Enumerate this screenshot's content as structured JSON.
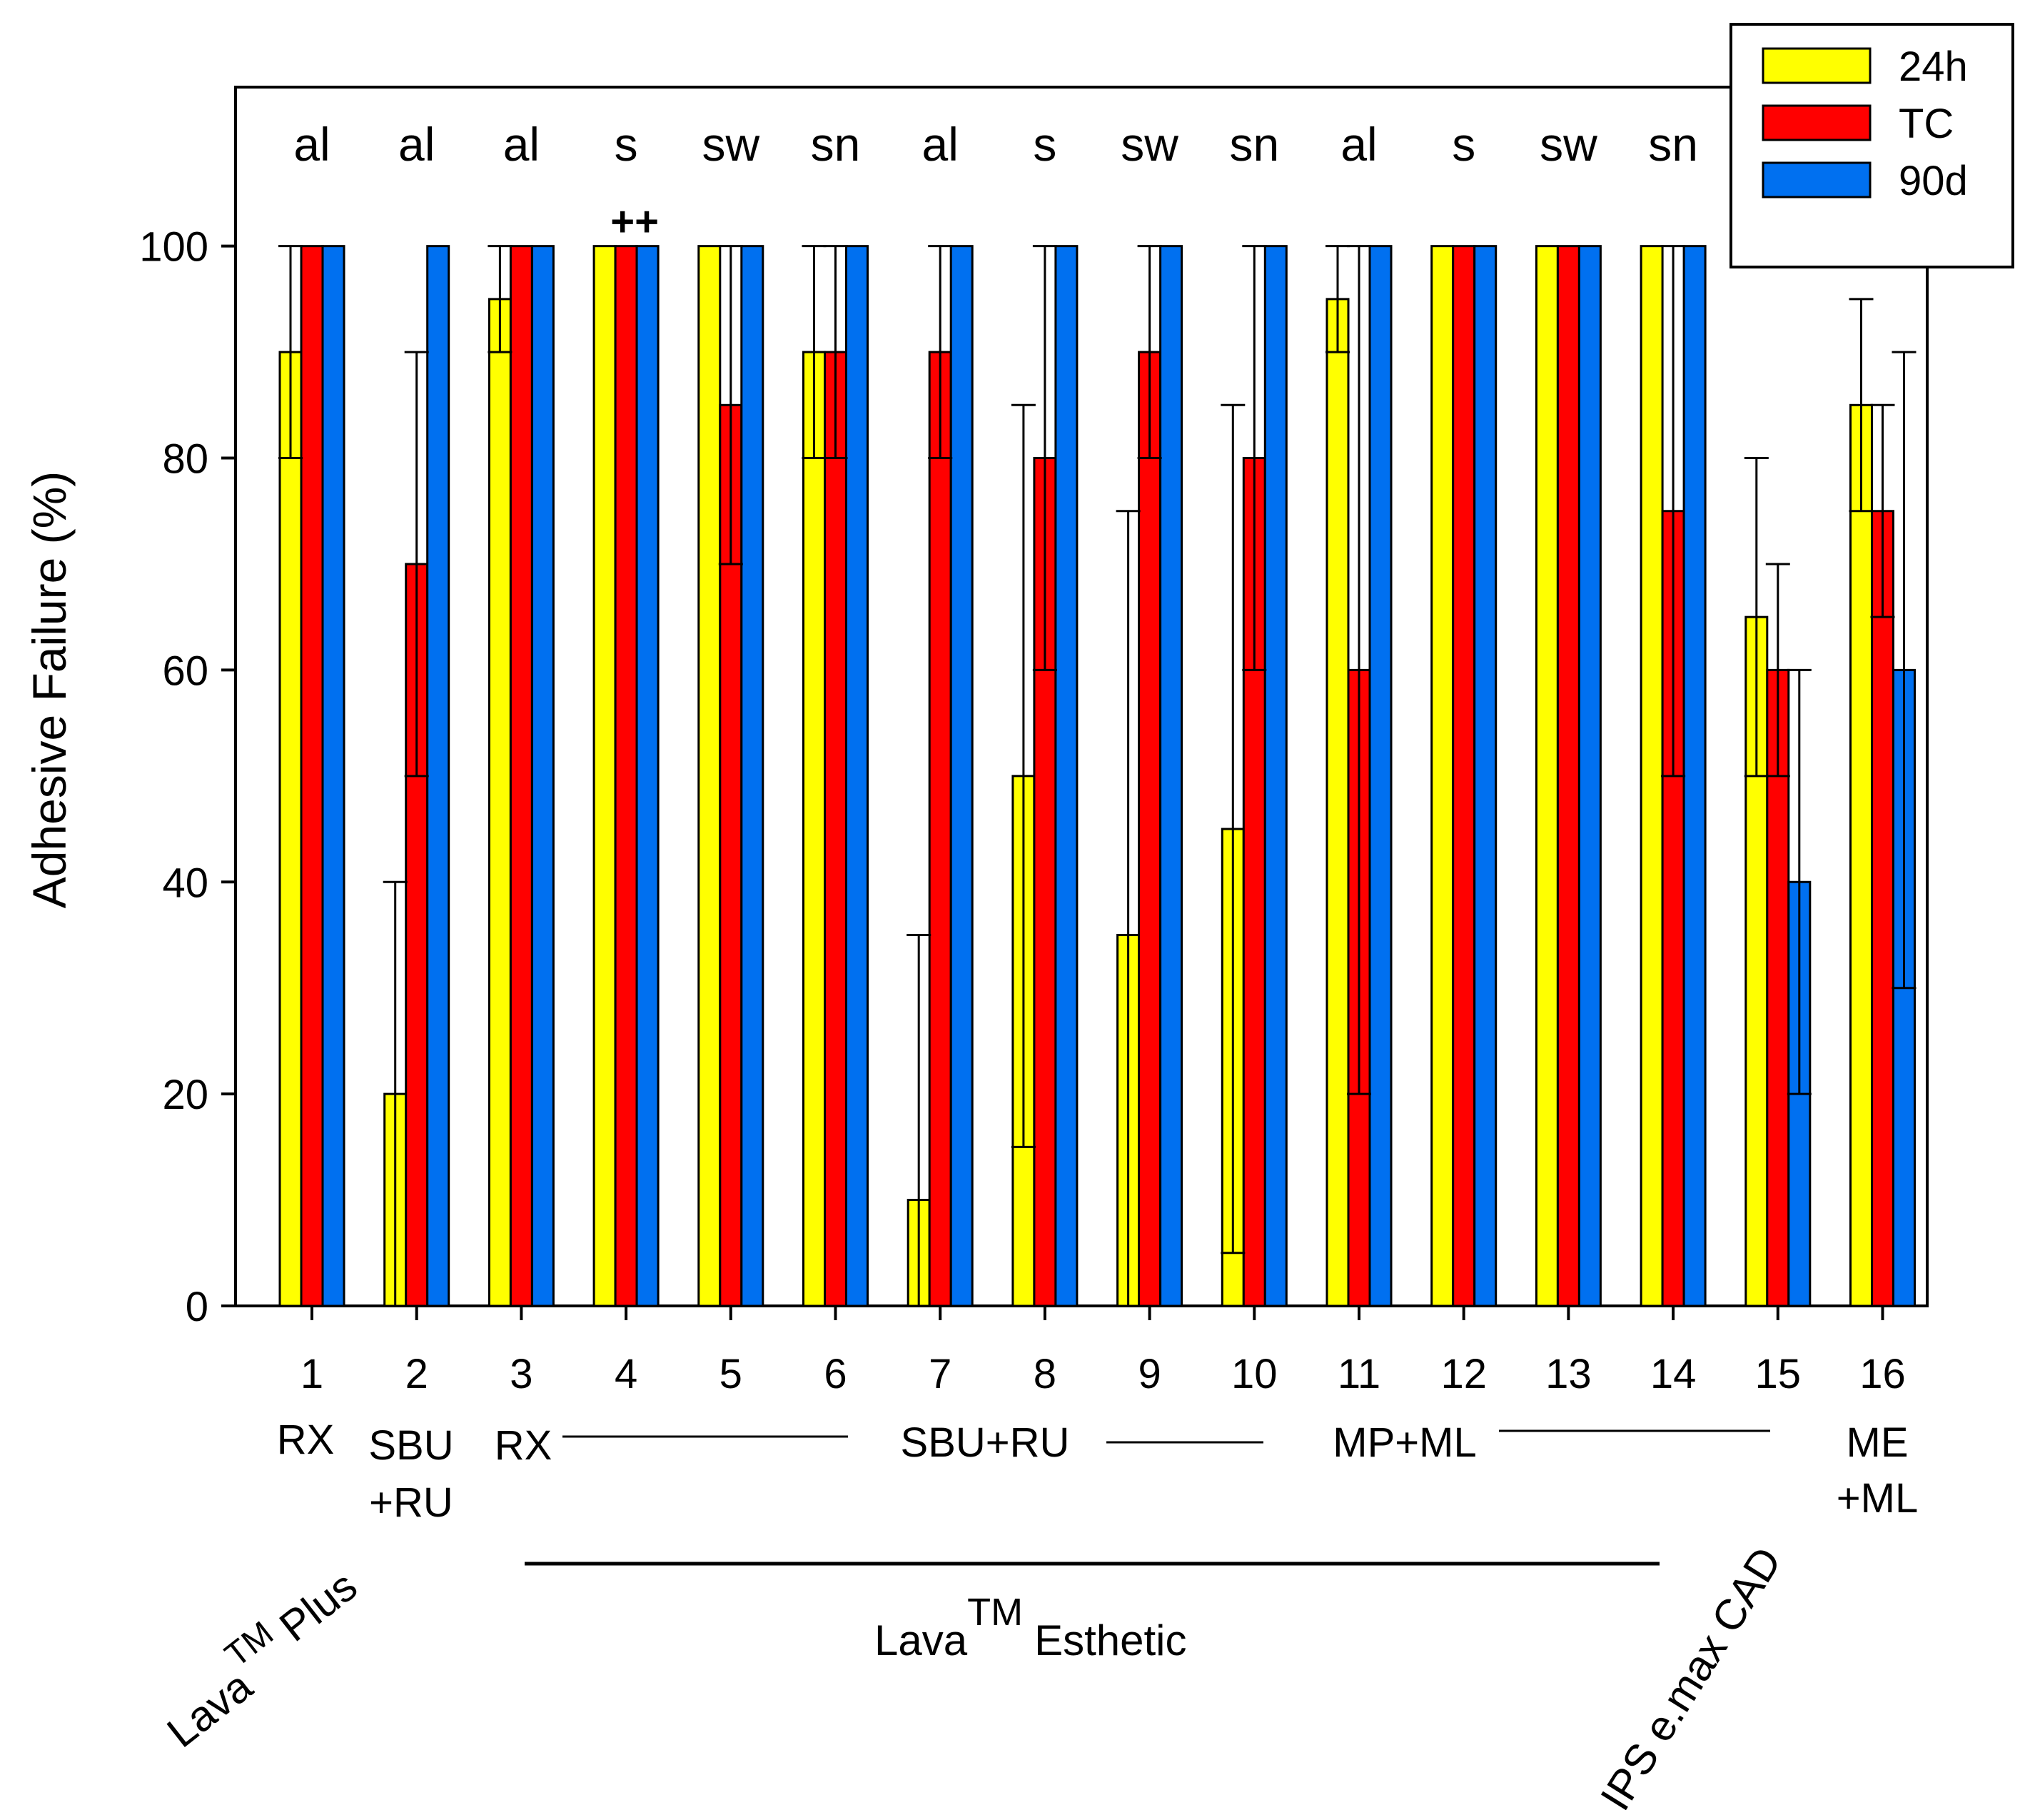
{
  "chart_data": {
    "type": "bar",
    "ylabel": "Adhesive Failure (%)",
    "ylim": [
      0,
      115
    ],
    "yticks": [
      0,
      20,
      40,
      60,
      80,
      100
    ],
    "categories": [
      "1",
      "2",
      "3",
      "4",
      "5",
      "6",
      "7",
      "8",
      "9",
      "10",
      "11",
      "12",
      "13",
      "14",
      "15",
      "16"
    ],
    "top_labels": [
      "al",
      "al",
      "al",
      "s",
      "sw",
      "sn",
      "al",
      "s",
      "sw",
      "sn",
      "al",
      "s",
      "sw",
      "sn",
      "",
      ""
    ],
    "marker": {
      "category": "4",
      "text": "++"
    },
    "series": [
      {
        "name": "24h",
        "color": "#ffff00",
        "values": [
          90,
          20,
          95,
          100,
          100,
          90,
          10,
          50,
          35,
          45,
          95,
          100,
          100,
          100,
          65,
          85
        ],
        "errors": [
          10,
          20,
          5,
          0,
          0,
          10,
          25,
          35,
          40,
          40,
          5,
          0,
          0,
          0,
          15,
          10
        ]
      },
      {
        "name": "TC",
        "color": "#ff0000",
        "values": [
          100,
          70,
          100,
          100,
          85,
          90,
          90,
          80,
          90,
          80,
          60,
          100,
          100,
          75,
          60,
          75
        ],
        "errors": [
          0,
          20,
          0,
          0,
          15,
          10,
          10,
          20,
          10,
          20,
          40,
          0,
          0,
          25,
          10,
          10
        ]
      },
      {
        "name": "90d",
        "color": "#0070f0",
        "values": [
          100,
          100,
          100,
          100,
          100,
          100,
          100,
          100,
          100,
          100,
          100,
          100,
          100,
          100,
          40,
          60
        ],
        "errors": [
          0,
          0,
          0,
          0,
          0,
          0,
          0,
          0,
          0,
          0,
          0,
          0,
          0,
          0,
          20,
          30
        ]
      }
    ],
    "legend": {
      "position": "top-right",
      "entries": [
        "24h",
        "TC",
        "90d"
      ]
    },
    "group_labels": {
      "cat1": "RX",
      "cat2_line1": "SBU",
      "cat2_line2": "+RU",
      "cat3": "RX",
      "cat7": "SBU+RU",
      "cat11": "MP+ML",
      "cat16_line1": "ME",
      "cat16_line2": "+ML"
    },
    "material_labels": {
      "lava_plus": {
        "main": "Lava",
        "sup": "TM",
        "rest": "Plus"
      },
      "lava_esthetic": {
        "main": "Lava",
        "sup": "TM",
        "rest": "Esthetic"
      },
      "ips": "IPS e.max CAD"
    }
  }
}
